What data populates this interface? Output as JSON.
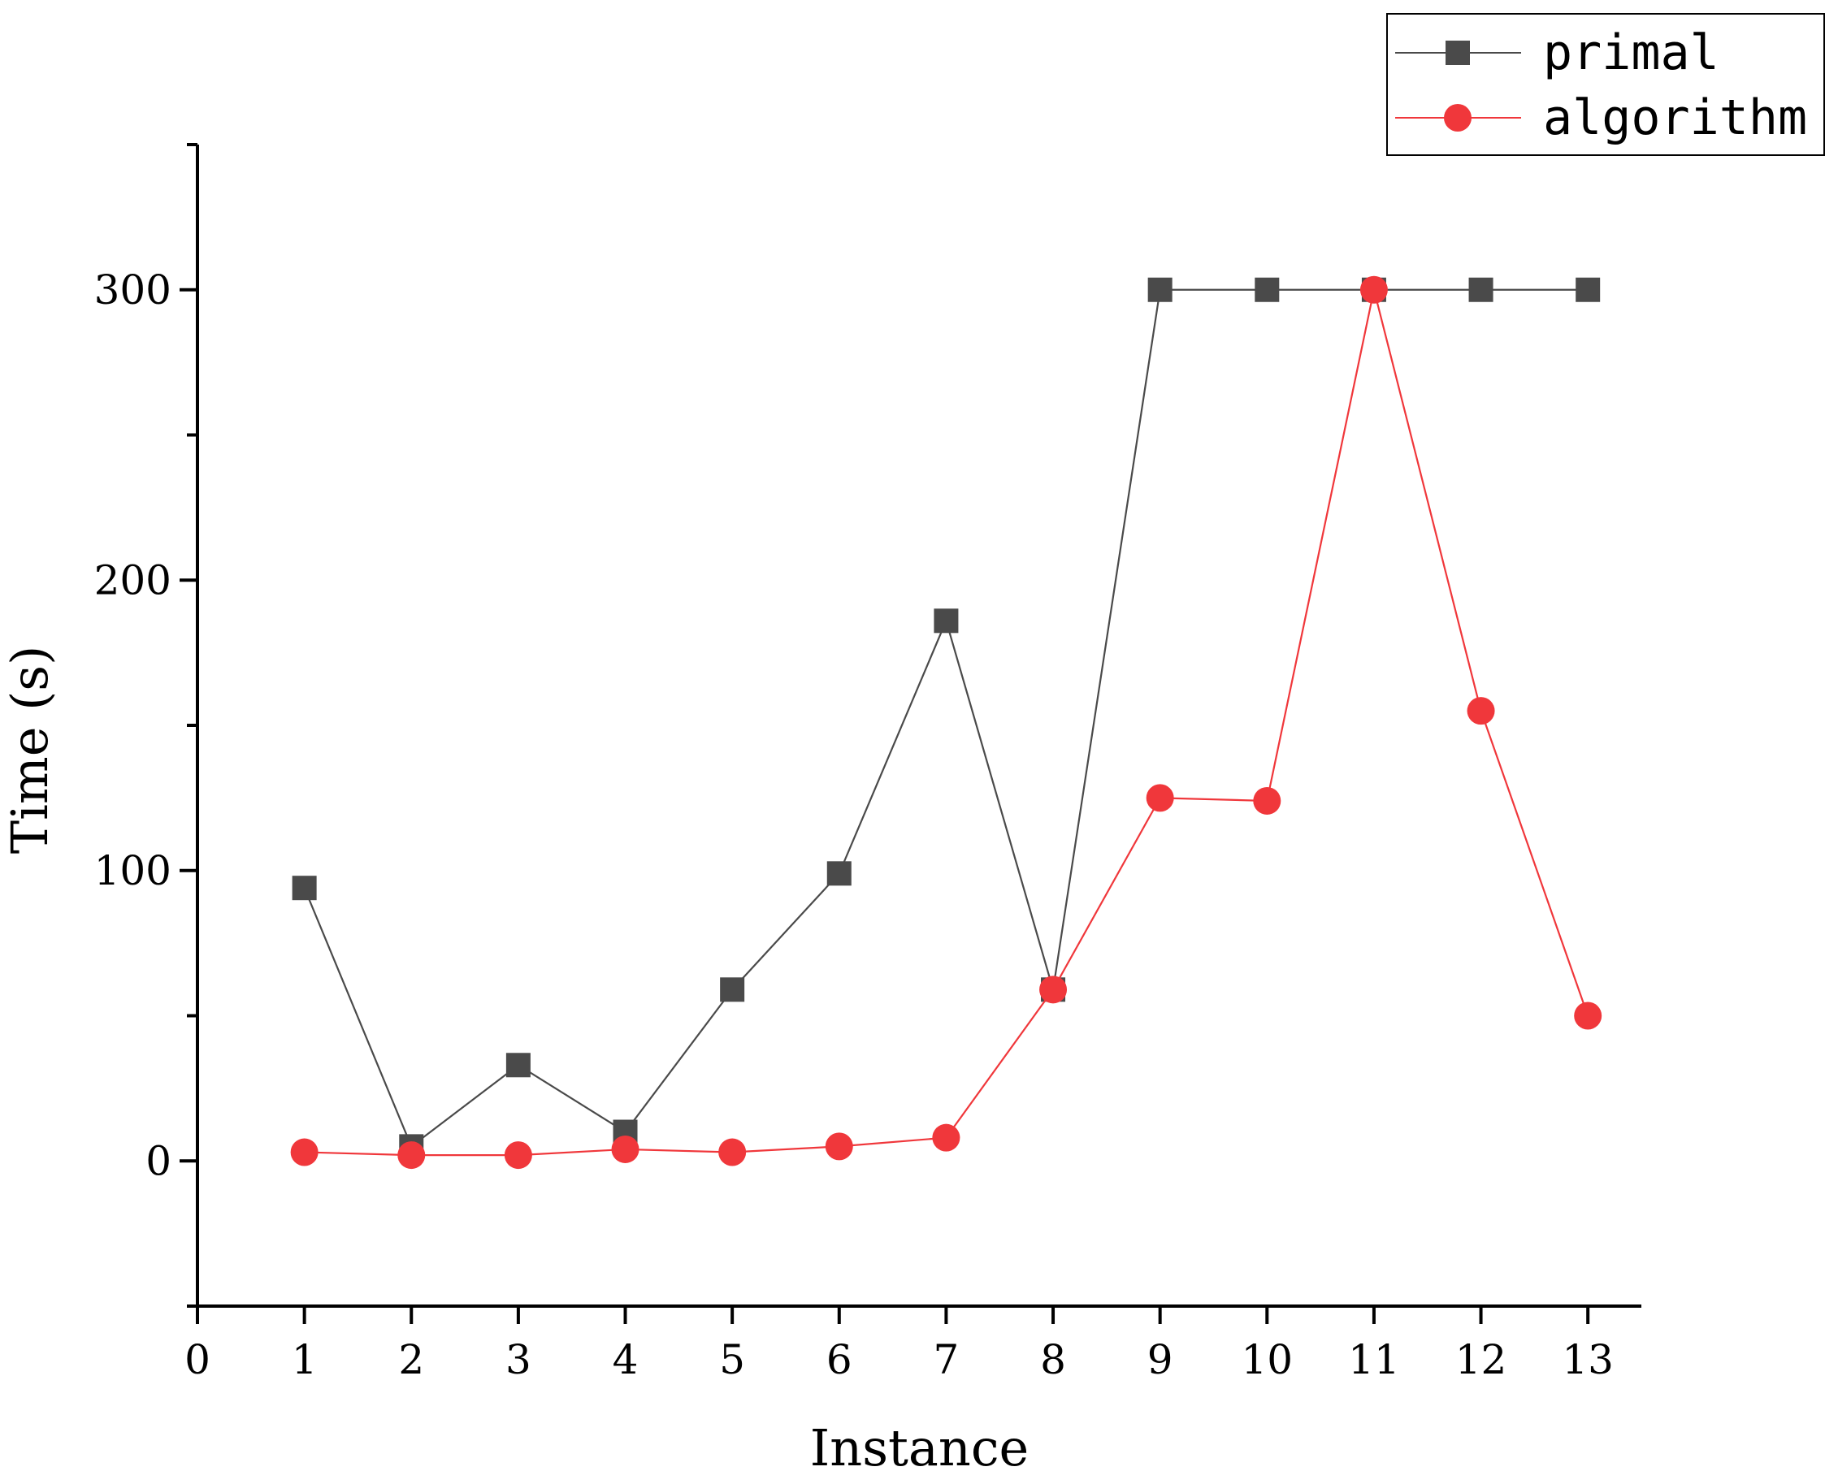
{
  "chart_data": {
    "type": "line",
    "title": "",
    "xlabel": "Instance",
    "ylabel": "Time (s)",
    "xlim": [
      0,
      13.5
    ],
    "ylim": [
      -50,
      350
    ],
    "x_ticks": [
      0,
      1,
      2,
      3,
      4,
      5,
      6,
      7,
      8,
      9,
      10,
      11,
      12,
      13
    ],
    "y_ticks": [
      0,
      100,
      200,
      300
    ],
    "y_minor_ticks": [
      -50,
      50,
      150,
      250,
      350
    ],
    "grid": false,
    "legend_position": "top-right",
    "series": [
      {
        "name": "primal",
        "color": "#4a4a4a",
        "marker": "square",
        "x": [
          1,
          2,
          3,
          4,
          5,
          6,
          7,
          8,
          9,
          10,
          11,
          12,
          13
        ],
        "y": [
          94,
          5,
          33,
          10,
          59,
          99,
          186,
          59,
          300,
          300,
          300,
          300,
          300
        ]
      },
      {
        "name": "algorithm",
        "color": "#f0373b",
        "marker": "circle",
        "x": [
          1,
          2,
          3,
          4,
          5,
          6,
          7,
          8,
          9,
          10,
          11,
          12,
          13
        ],
        "y": [
          3,
          2,
          2,
          4,
          3,
          5,
          8,
          59,
          125,
          124,
          300,
          155,
          50
        ]
      }
    ]
  }
}
